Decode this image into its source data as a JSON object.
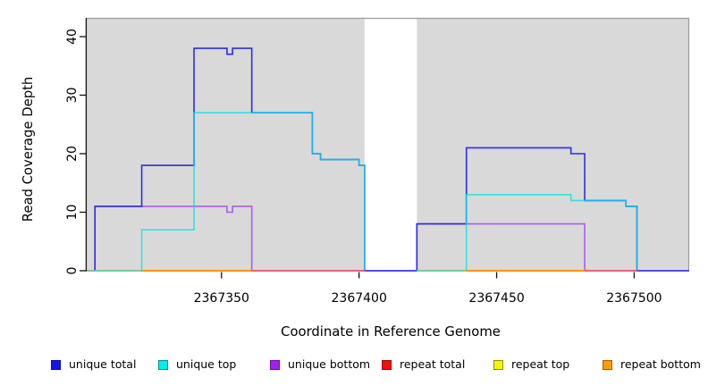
{
  "chart_data": {
    "type": "line",
    "subtype": "step-coverage-plot",
    "title": "",
    "xlabel": "Coordinate in Reference Genome",
    "ylabel": "Read Coverage Depth",
    "x_ticks": [
      2367350,
      2367400,
      2367450,
      2367500
    ],
    "y_ticks": [
      0,
      10,
      20,
      30,
      40
    ],
    "xlim": [
      2367301,
      2367520
    ],
    "ylim": [
      0,
      43
    ],
    "grid": false,
    "legend_position": "bottom",
    "panel_background": "#d9d9d9",
    "panel_border_color": "#9c9c9c",
    "axis_color": "#111111",
    "masked_region": {
      "from": 2367402,
      "to": 2367421,
      "color": "#ffffff"
    },
    "series": [
      {
        "name": "unique total",
        "color": "#2d2de2",
        "opacity": 1,
        "points": [
          [
            2367301,
            0
          ],
          [
            2367304,
            11
          ],
          [
            2367321,
            18
          ],
          [
            2367340,
            38
          ],
          [
            2367352,
            37
          ],
          [
            2367354,
            38
          ],
          [
            2367361,
            27
          ],
          [
            2367383,
            20
          ],
          [
            2367386,
            19
          ],
          [
            2367400,
            18
          ],
          [
            2367402,
            0
          ],
          [
            2367421,
            8
          ],
          [
            2367439,
            21
          ],
          [
            2367477,
            20
          ],
          [
            2367482,
            12
          ],
          [
            2367497,
            11
          ],
          [
            2367501,
            0
          ],
          [
            2367520,
            0
          ]
        ]
      },
      {
        "name": "unique top",
        "color": "#10dce6",
        "opacity": 0.78,
        "points": [
          [
            2367301,
            0
          ],
          [
            2367321,
            7
          ],
          [
            2367340,
            27
          ],
          [
            2367383,
            20
          ],
          [
            2367386,
            19
          ],
          [
            2367400,
            18
          ],
          [
            2367402,
            0
          ],
          [
            2367439,
            13
          ],
          [
            2367477,
            12
          ],
          [
            2367497,
            11
          ],
          [
            2367501,
            0
          ],
          [
            2367520,
            0
          ]
        ]
      },
      {
        "name": "unique bottom",
        "color": "#aa55ec",
        "opacity": 0.95,
        "points": [
          [
            2367301,
            0
          ],
          [
            2367304,
            11
          ],
          [
            2367352,
            10
          ],
          [
            2367354,
            11
          ],
          [
            2367361,
            0
          ],
          [
            2367421,
            8
          ],
          [
            2367482,
            0
          ],
          [
            2367520,
            0
          ]
        ]
      },
      {
        "name": "repeat total",
        "color": "#e01414",
        "opacity": 1,
        "points": [
          [
            2367301,
            0
          ],
          [
            2367520,
            0
          ]
        ]
      },
      {
        "name": "repeat top",
        "color": "#eeee00",
        "opacity": 1,
        "points": [
          [
            2367301,
            0
          ],
          [
            2367520,
            0
          ]
        ]
      },
      {
        "name": "repeat bottom",
        "color": "#ff9100",
        "opacity": 1,
        "points": [
          [
            2367301,
            0
          ],
          [
            2367520,
            0
          ]
        ]
      }
    ],
    "baseline_blend_segments": [
      {
        "from": 2367301,
        "to": 2367321,
        "color": "#74cfa0"
      },
      {
        "from": 2367321,
        "to": 2367361,
        "color": "#ff9100"
      },
      {
        "from": 2367361,
        "to": 2367402,
        "color": "#e85f74"
      },
      {
        "from": 2367402,
        "to": 2367421,
        "color": "#5546ec"
      },
      {
        "from": 2367421,
        "to": 2367439,
        "color": "#74cfa0"
      },
      {
        "from": 2367439,
        "to": 2367482,
        "color": "#ff9100"
      },
      {
        "from": 2367482,
        "to": 2367501,
        "color": "#e85f74"
      },
      {
        "from": 2367501,
        "to": 2367520,
        "color": "#5546ec"
      }
    ]
  },
  "legend": {
    "items": [
      {
        "label": "unique total",
        "color": "#1414e8",
        "border": "#0b0b99"
      },
      {
        "label": "unique top",
        "color": "#00eeee",
        "border": "#0a8f8f"
      },
      {
        "label": "unique bottom",
        "color": "#a020f0",
        "border": "#6a0da6"
      },
      {
        "label": "repeat total",
        "color": "#f50f0f",
        "border": "#8f0a0a"
      },
      {
        "label": "repeat top",
        "color": "#f5f500",
        "border": "#8f8f06"
      },
      {
        "label": "repeat bottom",
        "color": "#ff9d00",
        "border": "#9c6205"
      }
    ]
  }
}
